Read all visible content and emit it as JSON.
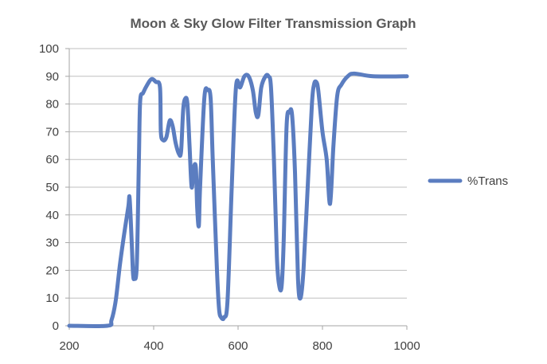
{
  "chart_data": {
    "type": "line",
    "title": "Moon & Sky Glow Filter Transmission Graph",
    "xlabel": "",
    "ylabel": "",
    "xlim": [
      200,
      1000
    ],
    "ylim": [
      0,
      100
    ],
    "x_ticks": [
      200,
      400,
      600,
      800,
      1000
    ],
    "y_ticks": [
      0,
      10,
      20,
      30,
      40,
      50,
      60,
      70,
      80,
      90,
      100
    ],
    "grid": true,
    "legend_position": "right",
    "series": [
      {
        "name": "%Trans",
        "color": "#5b7dc0",
        "points": [
          [
            200,
            0
          ],
          [
            290,
            0
          ],
          [
            300,
            2
          ],
          [
            310,
            9
          ],
          [
            320,
            22
          ],
          [
            330,
            33
          ],
          [
            340,
            43
          ],
          [
            343,
            46
          ],
          [
            348,
            30
          ],
          [
            351,
            19
          ],
          [
            354,
            17
          ],
          [
            360,
            22
          ],
          [
            365,
            60
          ],
          [
            368,
            81
          ],
          [
            375,
            84
          ],
          [
            385,
            87
          ],
          [
            395,
            89
          ],
          [
            405,
            88
          ],
          [
            415,
            86
          ],
          [
            417,
            70
          ],
          [
            422,
            67
          ],
          [
            430,
            68
          ],
          [
            438,
            74
          ],
          [
            445,
            72
          ],
          [
            452,
            66
          ],
          [
            460,
            62
          ],
          [
            465,
            63
          ],
          [
            470,
            78
          ],
          [
            475,
            82
          ],
          [
            480,
            80
          ],
          [
            485,
            65
          ],
          [
            490,
            50
          ],
          [
            495,
            57
          ],
          [
            500,
            57
          ],
          [
            503,
            43
          ],
          [
            507,
            36
          ],
          [
            510,
            50
          ],
          [
            520,
            82
          ],
          [
            528,
            85
          ],
          [
            535,
            82
          ],
          [
            540,
            60
          ],
          [
            550,
            20
          ],
          [
            555,
            6
          ],
          [
            560,
            3
          ],
          [
            567,
            3
          ],
          [
            575,
            9
          ],
          [
            585,
            50
          ],
          [
            595,
            86
          ],
          [
            605,
            86
          ],
          [
            615,
            90
          ],
          [
            625,
            90
          ],
          [
            635,
            85
          ],
          [
            642,
            77
          ],
          [
            648,
            76
          ],
          [
            655,
            86
          ],
          [
            665,
            90
          ],
          [
            672,
            90
          ],
          [
            678,
            86
          ],
          [
            685,
            60
          ],
          [
            692,
            25
          ],
          [
            697,
            15
          ],
          [
            703,
            14
          ],
          [
            708,
            30
          ],
          [
            715,
            72
          ],
          [
            722,
            77
          ],
          [
            728,
            76
          ],
          [
            735,
            55
          ],
          [
            742,
            17
          ],
          [
            748,
            10
          ],
          [
            755,
            20
          ],
          [
            765,
            50
          ],
          [
            775,
            80
          ],
          [
            780,
            87
          ],
          [
            785,
            88
          ],
          [
            790,
            85
          ],
          [
            800,
            70
          ],
          [
            810,
            60
          ],
          [
            818,
            44
          ],
          [
            826,
            65
          ],
          [
            835,
            83
          ],
          [
            845,
            87
          ],
          [
            860,
            90
          ],
          [
            875,
            91
          ],
          [
            920,
            90
          ],
          [
            1000,
            90
          ]
        ]
      }
    ]
  }
}
